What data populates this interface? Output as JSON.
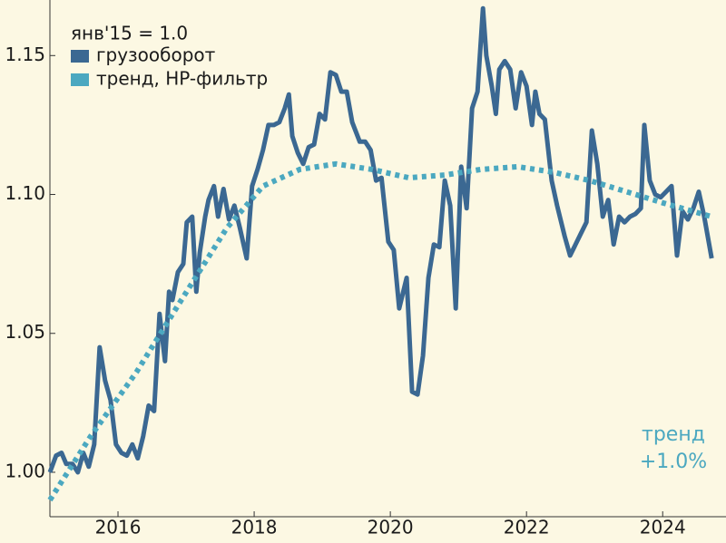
{
  "chart_data": {
    "type": "line",
    "legend_title": "янв'15 = 1.0",
    "annotation": [
      "тренд",
      "+1.0%"
    ],
    "xlim": [
      2015,
      2024.93
    ],
    "xticks": [
      2016,
      2018,
      2020,
      2022,
      2024
    ],
    "ylim": [
      0.984,
      1.17
    ],
    "yticks": [
      {
        "value": 1.0,
        "label": "1.00"
      },
      1.05,
      {
        "value": 1.1,
        "label": "1.10"
      },
      1.15
    ],
    "grid": false,
    "legend": "upper left",
    "series": [
      {
        "name": "грузооборот",
        "color": "#3b6892",
        "style": "solid",
        "x": [
          2015.0,
          2015.09,
          2015.17,
          2015.24,
          2015.33,
          2015.41,
          2015.49,
          2015.57,
          2015.65,
          2015.73,
          2015.81,
          2015.89,
          2015.97,
          2016.05,
          2016.13,
          2016.21,
          2016.29,
          2016.37,
          2016.45,
          2016.53,
          2016.61,
          2016.69,
          2016.75,
          2016.8,
          2016.88,
          2016.96,
          2017.01,
          2017.09,
          2017.15,
          2017.2,
          2017.28,
          2017.33,
          2017.41,
          2017.47,
          2017.55,
          2017.63,
          2017.71,
          2017.79,
          2017.89,
          2017.97,
          2018.05,
          2018.13,
          2018.21,
          2018.29,
          2018.37,
          2018.45,
          2018.51,
          2018.56,
          2018.64,
          2018.72,
          2018.8,
          2018.88,
          2018.96,
          2019.04,
          2019.12,
          2019.2,
          2019.28,
          2019.36,
          2019.44,
          2019.55,
          2019.63,
          2019.71,
          2019.79,
          2019.87,
          2019.97,
          2020.05,
          2020.13,
          2020.24,
          2020.32,
          2020.4,
          2020.48,
          2020.56,
          2020.64,
          2020.72,
          2020.8,
          2020.88,
          2020.96,
          2021.04,
          2021.12,
          2021.2,
          2021.28,
          2021.36,
          2021.41,
          2021.49,
          2021.55,
          2021.6,
          2021.68,
          2021.76,
          2021.84,
          2021.92,
          2022.0,
          2022.08,
          2022.13,
          2022.19,
          2022.27,
          2022.37,
          2022.45,
          2022.56,
          2022.64,
          2022.72,
          2022.8,
          2022.88,
          2022.96,
          2023.04,
          2023.12,
          2023.2,
          2023.28,
          2023.36,
          2023.44,
          2023.52,
          2023.6,
          2023.68,
          2023.73,
          2023.81,
          2023.89,
          2023.97,
          2024.05,
          2024.13,
          2024.21,
          2024.29,
          2024.37,
          2024.45,
          2024.53,
          2024.61,
          2024.72
        ],
        "values": [
          1.0,
          1.006,
          1.007,
          1.003,
          1.003,
          1.0,
          1.007,
          1.002,
          1.01,
          1.045,
          1.033,
          1.026,
          1.01,
          1.007,
          1.006,
          1.01,
          1.005,
          1.013,
          1.024,
          1.022,
          1.057,
          1.04,
          1.065,
          1.062,
          1.072,
          1.075,
          1.09,
          1.092,
          1.065,
          1.079,
          1.092,
          1.098,
          1.103,
          1.092,
          1.102,
          1.091,
          1.096,
          1.088,
          1.077,
          1.103,
          1.109,
          1.116,
          1.125,
          1.125,
          1.126,
          1.131,
          1.136,
          1.121,
          1.115,
          1.111,
          1.117,
          1.118,
          1.129,
          1.127,
          1.144,
          1.143,
          1.137,
          1.137,
          1.126,
          1.119,
          1.119,
          1.116,
          1.105,
          1.106,
          1.083,
          1.08,
          1.059,
          1.07,
          1.029,
          1.028,
          1.042,
          1.07,
          1.082,
          1.081,
          1.105,
          1.096,
          1.059,
          1.11,
          1.095,
          1.131,
          1.137,
          1.167,
          1.15,
          1.139,
          1.129,
          1.145,
          1.148,
          1.145,
          1.131,
          1.144,
          1.139,
          1.125,
          1.137,
          1.129,
          1.127,
          1.105,
          1.096,
          1.085,
          1.078,
          1.082,
          1.086,
          1.09,
          1.123,
          1.111,
          1.092,
          1.098,
          1.082,
          1.092,
          1.09,
          1.092,
          1.093,
          1.095,
          1.125,
          1.105,
          1.1,
          1.099,
          1.101,
          1.103,
          1.078,
          1.094,
          1.091,
          1.095,
          1.101,
          1.092,
          1.077
        ]
      },
      {
        "name": "тренд, HP-фильтр",
        "color": "#4ba8c0",
        "style": "dotted",
        "x": [
          2015.0,
          2015.6,
          2016.27,
          2016.93,
          2017.6,
          2018.13,
          2018.67,
          2019.2,
          2019.73,
          2020.27,
          2020.8,
          2021.33,
          2021.87,
          2022.4,
          2022.93,
          2023.47,
          2024.0,
          2024.72
        ],
        "values": [
          0.99,
          1.013,
          1.036,
          1.062,
          1.088,
          1.103,
          1.109,
          1.111,
          1.109,
          1.106,
          1.107,
          1.109,
          1.11,
          1.108,
          1.105,
          1.101,
          1.097,
          1.092
        ]
      }
    ]
  }
}
